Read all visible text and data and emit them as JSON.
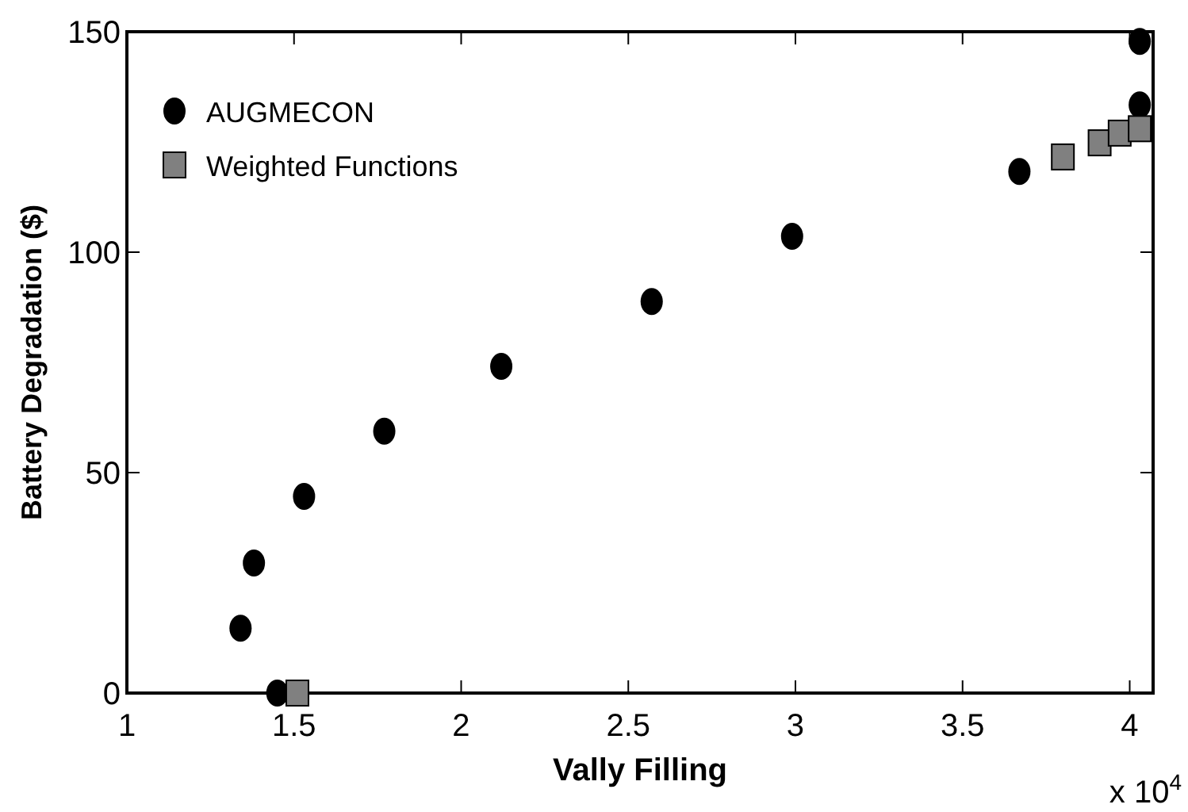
{
  "chart_data": {
    "type": "scatter",
    "xlabel": "Vally Filling",
    "ylabel": "Battery Degradation ($)",
    "annotations": [
      "x 10$^{4}$"
    ],
    "xlim": [
      1,
      4.07
    ],
    "xticks": [
      1,
      {
        "value": 1.5,
        "label": "1.5"
      },
      2,
      {
        "value": 2.5,
        "label": "2.5"
      },
      3,
      {
        "value": 3.5,
        "label": "3.5"
      },
      4
    ],
    "ylim": [
      0,
      150
    ],
    "yticks": [
      0,
      50,
      100,
      150
    ],
    "grid": false,
    "legend": "top left",
    "series": [
      {
        "name": "AUGMECON",
        "color": "#000000",
        "marker": "circle",
        "x": [
          1.34,
          1.38,
          1.53,
          1.77,
          2.12,
          2.57,
          2.99,
          3.67,
          4.03,
          4.03,
          1.45
        ],
        "values": [
          14.7,
          29.5,
          44.6,
          59.4,
          74.1,
          88.8,
          103.6,
          118.3,
          147.8,
          133.4,
          0
        ]
      },
      {
        "name": "Weighted Functions",
        "color": "#808080",
        "marker": "square",
        "x": [
          1.51,
          3.8,
          3.91,
          3.97,
          4.03
        ],
        "values": [
          0,
          121.6,
          124.8,
          127,
          128
        ]
      }
    ]
  }
}
